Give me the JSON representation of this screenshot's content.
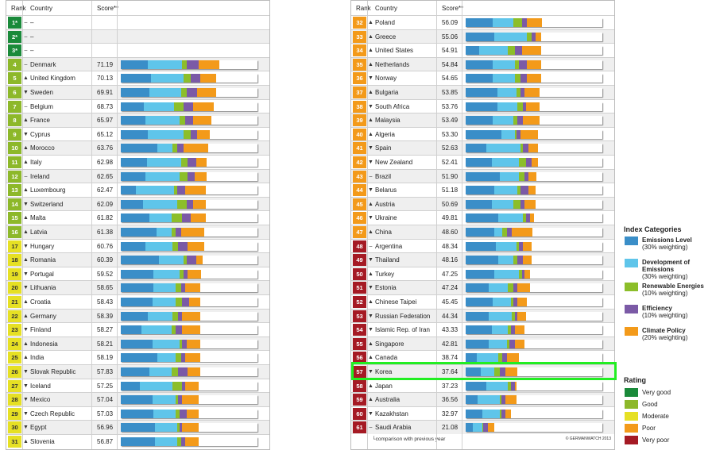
{
  "header": {
    "rank": "Rank",
    "country": "Country",
    "score": "Score**"
  },
  "colors": {
    "very_good": "#1a8a3a",
    "good": "#8db82a",
    "moderate": "#e6e024",
    "poor": "#f39a1a",
    "very_poor": "#a51a24",
    "emissions_level": "#3a8ec8",
    "emissions_development": "#5fc5ea",
    "renewable": "#8cbe2a",
    "efficiency": "#7b5aa6",
    "policy": "#f39a1a"
  },
  "chart_data": [
    {
      "type": "bar",
      "stacked": true,
      "x_max": 100,
      "columns": [
        "Rank",
        "Country",
        "Score**"
      ],
      "rows": [
        {
          "rank": "1*",
          "arrow": "–",
          "country": "–",
          "score": "",
          "rating": "very_good",
          "segments": []
        },
        {
          "rank": "2*",
          "arrow": "–",
          "country": "–",
          "score": "",
          "rating": "very_good",
          "segments": []
        },
        {
          "rank": "3*",
          "arrow": "–",
          "country": "–",
          "score": "",
          "rating": "very_good",
          "segments": []
        },
        {
          "rank": "4",
          "arrow": "–",
          "country": "Denmark",
          "score": "71.19",
          "rating": "good",
          "segments": [
            20,
            25,
            3,
            9,
            15
          ]
        },
        {
          "rank": "5",
          "arrow": "▲",
          "country": "United Kingdom",
          "score": "70.13",
          "rating": "good",
          "segments": [
            22,
            24,
            5,
            7,
            12
          ]
        },
        {
          "rank": "6",
          "arrow": "▼",
          "country": "Sweden",
          "score": "69.91",
          "rating": "good",
          "segments": [
            21,
            23,
            4,
            8,
            14
          ]
        },
        {
          "rank": "7",
          "arrow": "–",
          "country": "Belgium",
          "score": "68.73",
          "rating": "good",
          "segments": [
            17,
            22,
            7,
            7,
            15
          ]
        },
        {
          "rank": "8",
          "arrow": "▲",
          "country": "France",
          "score": "65.97",
          "rating": "good",
          "segments": [
            18,
            25,
            4,
            6,
            13
          ]
        },
        {
          "rank": "9",
          "arrow": "▼",
          "country": "Cyprus",
          "score": "65.12",
          "rating": "good",
          "segments": [
            20,
            26,
            5,
            5,
            9
          ]
        },
        {
          "rank": "10",
          "arrow": "▲",
          "country": "Morocco",
          "score": "63.76",
          "rating": "good",
          "segments": [
            27,
            11,
            3,
            5,
            18
          ]
        },
        {
          "rank": "11",
          "arrow": "▲",
          "country": "Italy",
          "score": "62.98",
          "rating": "good",
          "segments": [
            19,
            25,
            5,
            6,
            8
          ]
        },
        {
          "rank": "12",
          "arrow": "–",
          "country": "Ireland",
          "score": "62.65",
          "rating": "good",
          "segments": [
            18,
            25,
            6,
            5,
            9
          ]
        },
        {
          "rank": "13",
          "arrow": "▲",
          "country": "Luxembourg",
          "score": "62.47",
          "rating": "good",
          "segments": [
            11,
            28,
            2,
            6,
            15
          ]
        },
        {
          "rank": "14",
          "arrow": "▼",
          "country": "Switzerland",
          "score": "62.09",
          "rating": "good",
          "segments": [
            16,
            25,
            7,
            5,
            9
          ]
        },
        {
          "rank": "15",
          "arrow": "▲",
          "country": "Malta",
          "score": "61.82",
          "rating": "good",
          "segments": [
            21,
            16,
            8,
            6,
            11
          ]
        },
        {
          "rank": "16",
          "arrow": "▲",
          "country": "Latvia",
          "score": "61.38",
          "rating": "good",
          "segments": [
            26,
            11,
            3,
            4,
            17
          ]
        },
        {
          "rank": "17",
          "arrow": "▼",
          "country": "Hungary",
          "score": "60.76",
          "rating": "moderate",
          "segments": [
            18,
            20,
            4,
            7,
            12
          ]
        },
        {
          "rank": "18",
          "arrow": "▲",
          "country": "Romania",
          "score": "60.39",
          "rating": "moderate",
          "segments": [
            28,
            18,
            2,
            7,
            5
          ]
        },
        {
          "rank": "19",
          "arrow": "▼",
          "country": "Portugal",
          "score": "59.52",
          "rating": "moderate",
          "segments": [
            24,
            19,
            3,
            3,
            10
          ]
        },
        {
          "rank": "20",
          "arrow": "▼",
          "country": "Lithuania",
          "score": "58.65",
          "rating": "moderate",
          "segments": [
            24,
            16,
            4,
            3,
            11
          ]
        },
        {
          "rank": "21",
          "arrow": "▲",
          "country": "Croatia",
          "score": "58.43",
          "rating": "moderate",
          "segments": [
            23,
            17,
            5,
            5,
            8
          ]
        },
        {
          "rank": "22",
          "arrow": "▲",
          "country": "Germany",
          "score": "58.39",
          "rating": "moderate",
          "segments": [
            20,
            18,
            4,
            3,
            13
          ]
        },
        {
          "rank": "23",
          "arrow": "▼",
          "country": "Finland",
          "score": "58.27",
          "rating": "moderate",
          "segments": [
            15,
            22,
            3,
            5,
            13
          ]
        },
        {
          "rank": "24",
          "arrow": "▲",
          "country": "Indonesia",
          "score": "58.21",
          "rating": "moderate",
          "segments": [
            23,
            20,
            2,
            3,
            10
          ]
        },
        {
          "rank": "25",
          "arrow": "▲",
          "country": "India",
          "score": "58.19",
          "rating": "moderate",
          "segments": [
            27,
            13,
            4,
            3,
            11
          ]
        },
        {
          "rank": "26",
          "arrow": "▼",
          "country": "Slovak Republic",
          "score": "57.83",
          "rating": "moderate",
          "segments": [
            21,
            16,
            5,
            7,
            9
          ]
        },
        {
          "rank": "27",
          "arrow": "▼",
          "country": "Iceland",
          "score": "57.25",
          "rating": "moderate",
          "segments": [
            14,
            24,
            7,
            2,
            10
          ]
        },
        {
          "rank": "28",
          "arrow": "▼",
          "country": "Mexico",
          "score": "57.04",
          "rating": "moderate",
          "segments": [
            23,
            17,
            2,
            3,
            12
          ]
        },
        {
          "rank": "29",
          "arrow": "▼",
          "country": "Czech Republic",
          "score": "57.03",
          "rating": "moderate",
          "segments": [
            24,
            16,
            3,
            5,
            9
          ]
        },
        {
          "rank": "30",
          "arrow": "▼",
          "country": "Egypt",
          "score": "56.96",
          "rating": "moderate",
          "segments": [
            25,
            16,
            2,
            2,
            12
          ]
        },
        {
          "rank": "31",
          "arrow": "▲",
          "country": "Slovenia",
          "score": "56.87",
          "rating": "moderate",
          "segments": [
            25,
            16,
            3,
            3,
            10
          ]
        }
      ]
    },
    {
      "type": "bar",
      "stacked": true,
      "x_max": 100,
      "columns": [
        "Rank",
        "Country",
        "Score**"
      ],
      "rows": [
        {
          "rank": "32",
          "arrow": "▲",
          "country": "Poland",
          "score": "56.09",
          "rating": "poor",
          "segments": [
            20,
            15,
            6,
            4,
            11
          ]
        },
        {
          "rank": "33",
          "arrow": "▲",
          "country": "Greece",
          "score": "55.06",
          "rating": "poor",
          "segments": [
            21,
            24,
            3,
            3,
            4
          ]
        },
        {
          "rank": "34",
          "arrow": "▲",
          "country": "United States",
          "score": "54.91",
          "rating": "poor",
          "segments": [
            10,
            21,
            5,
            5,
            14
          ]
        },
        {
          "rank": "35",
          "arrow": "▲",
          "country": "Netherlands",
          "score": "54.84",
          "rating": "poor",
          "segments": [
            20,
            16,
            3,
            6,
            10
          ]
        },
        {
          "rank": "36",
          "arrow": "▼",
          "country": "Norway",
          "score": "54.65",
          "rating": "poor",
          "segments": [
            20,
            16,
            4,
            5,
            10
          ]
        },
        {
          "rank": "37",
          "arrow": "▲",
          "country": "Bulgaria",
          "score": "53.85",
          "rating": "poor",
          "segments": [
            23,
            14,
            3,
            3,
            11
          ]
        },
        {
          "rank": "38",
          "arrow": "▼",
          "country": "South Africa",
          "score": "53.76",
          "rating": "poor",
          "segments": [
            23,
            15,
            4,
            2,
            10
          ]
        },
        {
          "rank": "39",
          "arrow": "▲",
          "country": "Malaysia",
          "score": "53.49",
          "rating": "poor",
          "segments": [
            20,
            15,
            3,
            4,
            12
          ]
        },
        {
          "rank": "40",
          "arrow": "▲",
          "country": "Algeria",
          "score": "53.30",
          "rating": "poor",
          "segments": [
            26,
            10,
            1,
            3,
            13
          ]
        },
        {
          "rank": "41",
          "arrow": "▼",
          "country": "Spain",
          "score": "52.63",
          "rating": "poor",
          "segments": [
            15,
            25,
            2,
            4,
            7
          ]
        },
        {
          "rank": "42",
          "arrow": "▼",
          "country": "New Zealand",
          "score": "52.41",
          "rating": "poor",
          "segments": [
            19,
            20,
            5,
            4,
            5
          ]
        },
        {
          "rank": "43",
          "arrow": "–",
          "country": "Brazil",
          "score": "51.90",
          "rating": "poor",
          "segments": [
            25,
            14,
            4,
            3,
            6
          ]
        },
        {
          "rank": "44",
          "arrow": "▼",
          "country": "Belarus",
          "score": "51.18",
          "rating": "poor",
          "segments": [
            21,
            17,
            2,
            6,
            5
          ]
        },
        {
          "rank": "45",
          "arrow": "▲",
          "country": "Austria",
          "score": "50.69",
          "rating": "poor",
          "segments": [
            19,
            16,
            5,
            3,
            8
          ]
        },
        {
          "rank": "46",
          "arrow": "▼",
          "country": "Ukraine",
          "score": "49.81",
          "rating": "poor",
          "segments": [
            24,
            18,
            2,
            3,
            3
          ]
        },
        {
          "rank": "47",
          "arrow": "▲",
          "country": "China",
          "score": "48.60",
          "rating": "poor",
          "segments": [
            21,
            6,
            3,
            4,
            15
          ]
        },
        {
          "rank": "48",
          "arrow": "–",
          "country": "Argentina",
          "score": "48.34",
          "rating": "very_poor",
          "segments": [
            22,
            15,
            2,
            3,
            6
          ]
        },
        {
          "rank": "49",
          "arrow": "▼",
          "country": "Thailand",
          "score": "48.16",
          "rating": "very_poor",
          "segments": [
            24,
            11,
            3,
            4,
            6
          ]
        },
        {
          "rank": "50",
          "arrow": "▲",
          "country": "Turkey",
          "score": "47.25",
          "rating": "very_poor",
          "segments": [
            21,
            18,
            2,
            2,
            4
          ]
        },
        {
          "rank": "51",
          "arrow": "▼",
          "country": "Estonia",
          "score": "47.24",
          "rating": "very_poor",
          "segments": [
            17,
            14,
            4,
            3,
            9
          ]
        },
        {
          "rank": "52",
          "arrow": "▲",
          "country": "Chinese Taipei",
          "score": "45.45",
          "rating": "very_poor",
          "segments": [
            20,
            13,
            2,
            3,
            7
          ]
        },
        {
          "rank": "53",
          "arrow": "▼",
          "country": "Russian Federation",
          "score": "44.34",
          "rating": "very_poor",
          "segments": [
            17,
            17,
            2,
            2,
            6
          ]
        },
        {
          "rank": "54",
          "arrow": "▼",
          "country": "Islamic Rep. of Iran",
          "score": "43.33",
          "rating": "very_poor",
          "segments": [
            19,
            12,
            2,
            3,
            7
          ]
        },
        {
          "rank": "55",
          "arrow": "▲",
          "country": "Singapore",
          "score": "42.81",
          "rating": "very_poor",
          "segments": [
            17,
            13,
            2,
            4,
            7
          ]
        },
        {
          "rank": "56",
          "arrow": "▲",
          "country": "Canada",
          "score": "38.74",
          "rating": "very_poor",
          "segments": [
            8,
            16,
            3,
            3,
            9
          ]
        },
        {
          "rank": "57",
          "arrow": "▼",
          "country": "Korea",
          "score": "37.64",
          "rating": "very_poor",
          "segments": [
            11,
            10,
            4,
            4,
            9
          ]
        },
        {
          "rank": "58",
          "arrow": "▲",
          "country": "Japan",
          "score": "37.23",
          "rating": "very_poor",
          "segments": [
            15,
            16,
            2,
            3,
            1
          ]
        },
        {
          "rank": "59",
          "arrow": "▲",
          "country": "Australia",
          "score": "36.56",
          "rating": "very_poor",
          "segments": [
            9,
            16,
            1,
            3,
            8
          ]
        },
        {
          "rank": "60",
          "arrow": "▼",
          "country": "Kazakhstan",
          "score": "32.97",
          "rating": "very_poor",
          "segments": [
            12,
            13,
            1,
            3,
            4
          ]
        },
        {
          "rank": "61",
          "arrow": "–",
          "country": "Saudi Arabia",
          "score": "21.08",
          "rating": "very_poor",
          "segments": [
            5,
            7,
            1,
            3,
            5
          ]
        }
      ]
    }
  ],
  "highlight_country": "Korea",
  "footnote": "comparison with previous year",
  "copyright": "© GERMANWATCH 2013",
  "legend": {
    "categories_title": "Index Categories",
    "categories": [
      {
        "key": "emissions_level",
        "name": "Emissions Level",
        "weight": "(30% weighting)"
      },
      {
        "key": "emissions_development",
        "name": "Development of Emissions",
        "weight": "(30% weighting)"
      },
      {
        "key": "renewable",
        "name": "Renewable Energies",
        "weight": "(10% weighting)"
      },
      {
        "key": "efficiency",
        "name": "Efficiency",
        "weight": "(10% weighting)"
      },
      {
        "key": "policy",
        "name": "Climate Policy",
        "weight": "(20% weighting)"
      }
    ],
    "rating_title": "Rating",
    "ratings": [
      {
        "key": "very_good",
        "label": "Very good"
      },
      {
        "key": "good",
        "label": "Good"
      },
      {
        "key": "moderate",
        "label": "Moderate"
      },
      {
        "key": "poor",
        "label": "Poor"
      },
      {
        "key": "very_poor",
        "label": "Very poor"
      }
    ]
  }
}
